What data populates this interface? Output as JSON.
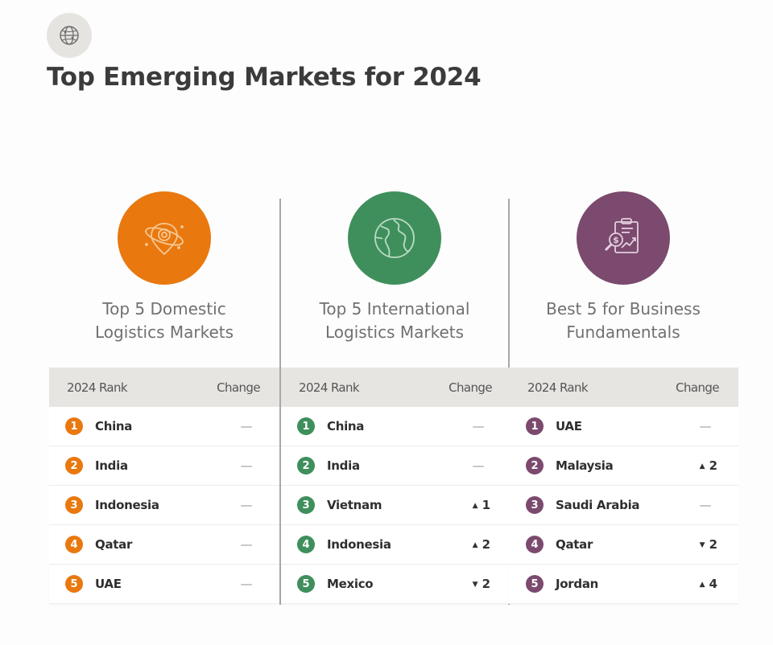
{
  "header": {
    "badge_icon": "globe-network-icon",
    "title": "Top Emerging Markets for 2024"
  },
  "table_headers": {
    "rank": "2024 Rank",
    "change": "Change"
  },
  "columns": [
    {
      "icon": "location-pin-orbit-icon",
      "color": "#e9780f",
      "heading_line1": "Top 5 Domestic",
      "heading_line2": "Logistics Markets",
      "rows": [
        {
          "rank": "1",
          "country": "China",
          "change": "—",
          "direction": "none"
        },
        {
          "rank": "2",
          "country": "India",
          "change": "—",
          "direction": "none"
        },
        {
          "rank": "3",
          "country": "Indonesia",
          "change": "—",
          "direction": "none"
        },
        {
          "rank": "4",
          "country": "Qatar",
          "change": "—",
          "direction": "none"
        },
        {
          "rank": "5",
          "country": "UAE",
          "change": "—",
          "direction": "none"
        }
      ]
    },
    {
      "icon": "globe-icon",
      "color": "#3f8f5c",
      "heading_line1": "Top 5 International",
      "heading_line2": "Logistics Markets",
      "rows": [
        {
          "rank": "1",
          "country": "China",
          "change": "—",
          "direction": "none"
        },
        {
          "rank": "2",
          "country": "India",
          "change": "—",
          "direction": "none"
        },
        {
          "rank": "3",
          "country": "Vietnam",
          "change": "1",
          "direction": "up"
        },
        {
          "rank": "4",
          "country": "Indonesia",
          "change": "2",
          "direction": "up"
        },
        {
          "rank": "5",
          "country": "Mexico",
          "change": "2",
          "direction": "down"
        }
      ]
    },
    {
      "icon": "clipboard-dollar-chart-icon",
      "color": "#7b4a6e",
      "heading_line1": "Best 5 for Business",
      "heading_line2": "Fundamentals",
      "rows": [
        {
          "rank": "1",
          "country": "UAE",
          "change": "—",
          "direction": "none"
        },
        {
          "rank": "2",
          "country": "Malaysia",
          "change": "2",
          "direction": "up"
        },
        {
          "rank": "3",
          "country": "Saudi Arabia",
          "change": "—",
          "direction": "none"
        },
        {
          "rank": "4",
          "country": "Qatar",
          "change": "2",
          "direction": "down"
        },
        {
          "rank": "5",
          "country": "Jordan",
          "change": "4",
          "direction": "up"
        }
      ]
    }
  ],
  "arrows": {
    "up": "▲",
    "down": "▼"
  }
}
